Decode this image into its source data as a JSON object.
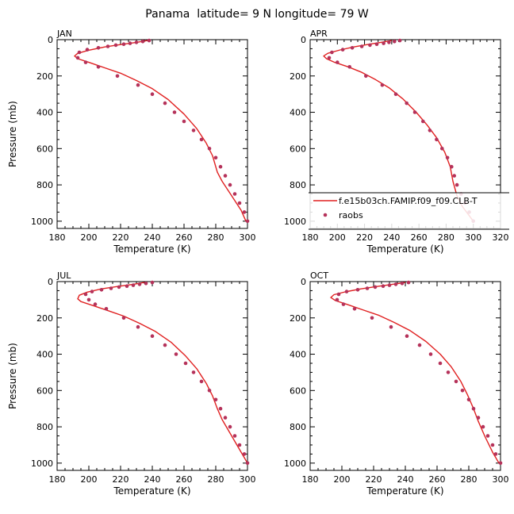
{
  "figure": {
    "title": "Panama  latitude= 9 N longitude= 79 W"
  },
  "colors": {
    "model_line": "#e02020",
    "raobs_marker": "#b5325a",
    "axes": "#000000"
  },
  "chart_data": [
    {
      "type": "line",
      "panel_label": "JAN",
      "xlabel": "Temperature (K)",
      "ylabel": "Pressure (mb)",
      "xlim": [
        180,
        300
      ],
      "ylim": [
        0,
        1040
      ],
      "y_inverted": true,
      "xticks": [
        180,
        200,
        220,
        240,
        260,
        280,
        300
      ],
      "yticks": [
        0,
        200,
        400,
        600,
        800,
        1000
      ],
      "series": [
        {
          "kind": "line",
          "x": [
            237,
            230,
            220,
            210,
            200,
            193,
            191,
            193,
            200,
            210,
            220,
            230,
            240,
            250,
            260,
            268,
            274,
            278,
            281,
            284,
            290,
            296,
            299
          ],
          "y": [
            5,
            15,
            27,
            40,
            58,
            75,
            90,
            105,
            125,
            155,
            185,
            225,
            270,
            330,
            410,
            490,
            570,
            640,
            730,
            780,
            860,
            940,
            1000
          ]
        },
        {
          "kind": "markers",
          "x": [
            238,
            234,
            230,
            226,
            222,
            217,
            212,
            206,
            199,
            194,
            193,
            198,
            206,
            218,
            231,
            240,
            248,
            254,
            260,
            266,
            271,
            276,
            280,
            283,
            286,
            289,
            292,
            295,
            298,
            300
          ],
          "y": [
            5,
            10,
            15,
            20,
            25,
            30,
            37,
            45,
            55,
            70,
            100,
            125,
            150,
            200,
            250,
            300,
            350,
            400,
            450,
            500,
            550,
            600,
            650,
            700,
            750,
            800,
            850,
            900,
            950,
            1000
          ]
        }
      ]
    },
    {
      "type": "line",
      "panel_label": "APR",
      "xlabel": "Temperature (K)",
      "ylabel": "",
      "xlim": [
        180,
        320
      ],
      "ylim": [
        0,
        1040
      ],
      "y_inverted": true,
      "xticks": [
        180,
        200,
        220,
        240,
        260,
        280,
        300,
        320
      ],
      "yticks": [
        0,
        200,
        400,
        600,
        800,
        1000
      ],
      "legend": {
        "placement": "lower-right",
        "entries": [
          {
            "label": "f.e15b03ch.FAMIP.f09_f09.CLB-T",
            "kind": "line"
          },
          {
            "label": "raobs",
            "kind": "markers"
          }
        ]
      },
      "series": [
        {
          "kind": "line",
          "x": [
            240,
            232,
            222,
            212,
            202,
            193,
            190,
            192,
            198,
            208,
            218,
            228,
            238,
            248,
            258,
            266,
            273,
            279,
            283,
            285,
            288,
            292,
            296,
            300
          ],
          "y": [
            5,
            15,
            27,
            40,
            57,
            75,
            90,
            105,
            125,
            150,
            180,
            220,
            265,
            325,
            400,
            470,
            540,
            620,
            700,
            780,
            860,
            920,
            960,
            1000
          ]
        },
        {
          "kind": "markers",
          "x": [
            246,
            242,
            238,
            234,
            229,
            224,
            218,
            211,
            204,
            196,
            194,
            200,
            209,
            221,
            233,
            243,
            251,
            257,
            263,
            268,
            273,
            277,
            281,
            284,
            286,
            288,
            291,
            294,
            297,
            300
          ],
          "y": [
            5,
            10,
            15,
            20,
            25,
            30,
            37,
            45,
            55,
            70,
            100,
            125,
            150,
            200,
            250,
            300,
            350,
            400,
            450,
            500,
            550,
            600,
            650,
            700,
            750,
            800,
            850,
            900,
            950,
            1000
          ]
        }
      ]
    },
    {
      "type": "line",
      "panel_label": "JUL",
      "xlabel": "Temperature (K)",
      "ylabel": "Pressure (mb)",
      "xlim": [
        180,
        300
      ],
      "ylim": [
        0,
        1040
      ],
      "y_inverted": true,
      "xticks": [
        180,
        200,
        220,
        240,
        260,
        280,
        300
      ],
      "yticks": [
        0,
        200,
        400,
        600,
        800,
        1000
      ],
      "series": [
        {
          "kind": "line",
          "x": [
            235,
            228,
            218,
            208,
            199,
            194,
            193,
            195,
            202,
            212,
            222,
            232,
            242,
            252,
            261,
            268,
            274,
            278,
            281,
            284,
            290,
            296,
            300
          ],
          "y": [
            5,
            15,
            27,
            40,
            58,
            75,
            95,
            110,
            130,
            160,
            190,
            230,
            275,
            335,
            410,
            480,
            560,
            630,
            700,
            760,
            850,
            940,
            1000
          ]
        },
        {
          "kind": "markers",
          "x": [
            240,
            236,
            232,
            228,
            224,
            219,
            214,
            208,
            202,
            198,
            200,
            204,
            211,
            222,
            231,
            240,
            248,
            255,
            261,
            266,
            271,
            276,
            280,
            283,
            286,
            289,
            292,
            295,
            298,
            300
          ],
          "y": [
            5,
            10,
            15,
            20,
            25,
            30,
            37,
            45,
            55,
            70,
            100,
            125,
            150,
            200,
            250,
            300,
            350,
            400,
            450,
            500,
            550,
            600,
            650,
            700,
            750,
            800,
            850,
            900,
            950,
            1000
          ]
        }
      ]
    },
    {
      "type": "line",
      "panel_label": "OCT",
      "xlabel": "Temperature (K)",
      "ylabel": "",
      "xlim": [
        180,
        300
      ],
      "ylim": [
        0,
        1040
      ],
      "y_inverted": true,
      "xticks": [
        180,
        200,
        220,
        240,
        260,
        280,
        300
      ],
      "yticks": [
        0,
        200,
        400,
        600,
        800,
        1000
      ],
      "series": [
        {
          "kind": "line",
          "x": [
            240,
            232,
            222,
            212,
            202,
            195,
            193,
            196,
            203,
            213,
            223,
            233,
            243,
            253,
            262,
            269,
            275,
            279,
            283,
            286,
            290,
            295,
            299
          ],
          "y": [
            5,
            15,
            27,
            40,
            57,
            72,
            88,
            105,
            125,
            155,
            185,
            225,
            270,
            330,
            400,
            470,
            550,
            620,
            700,
            770,
            850,
            940,
            1000
          ]
        },
        {
          "kind": "markers",
          "x": [
            242,
            238,
            234,
            230,
            226,
            221,
            216,
            210,
            203,
            198,
            197,
            201,
            208,
            219,
            231,
            241,
            249,
            256,
            262,
            267,
            272,
            276,
            280,
            283,
            286,
            289,
            292,
            295,
            297,
            300
          ],
          "y": [
            5,
            10,
            15,
            20,
            25,
            30,
            37,
            45,
            55,
            70,
            100,
            125,
            150,
            200,
            250,
            300,
            350,
            400,
            450,
            500,
            550,
            600,
            650,
            700,
            750,
            800,
            850,
            900,
            950,
            1000
          ]
        }
      ]
    }
  ]
}
